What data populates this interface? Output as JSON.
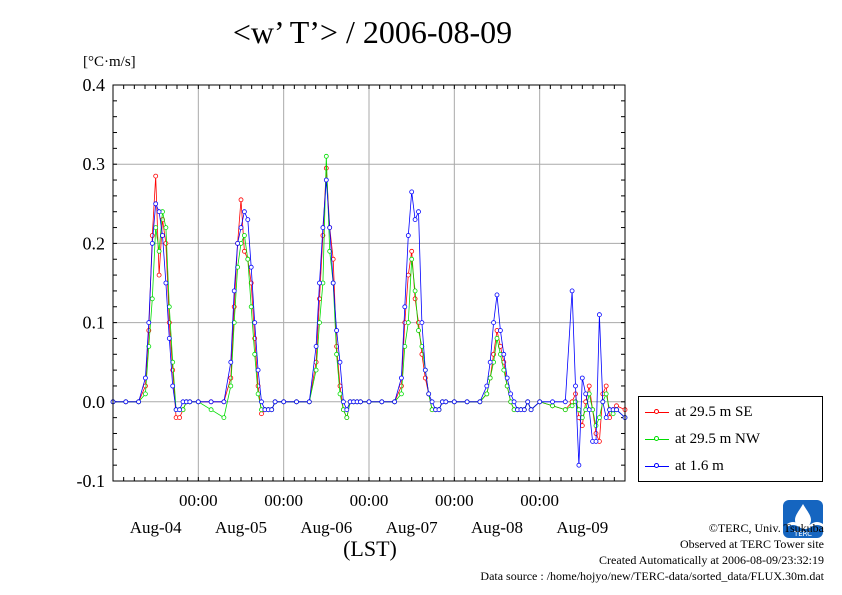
{
  "title": "<w’ T’> / 2006-08-09",
  "unit_label": "[°C·m/s]",
  "xlabel": "(LST)",
  "footer": {
    "credit": "©TERC, Univ. Tsukuba",
    "site": "Observed at TERC Tower site",
    "created": "Created Automatically at 2006-08-09/23:32:19",
    "source": "Data source : /home/hojyo/new/TERC-data/sorted_data/FLUX.30m.dat",
    "logo_text": "TERC"
  },
  "chart_data": {
    "type": "line",
    "title": "<w’ T’> / 2006-08-09",
    "ylabel": "[°C·m/s]",
    "xlabel": "(LST)",
    "ylim": [
      -0.1,
      0.4
    ],
    "yticks": [
      "0.4",
      "0.3",
      "0.2",
      "0.1",
      "0.0",
      "-0.1"
    ],
    "ytick_values": [
      0.4,
      0.3,
      0.2,
      0.1,
      0.0,
      -0.1
    ],
    "xlim_days": [
      0,
      6
    ],
    "time_tick_labels": [
      "00:00",
      "00:00",
      "00:00",
      "00:00",
      "00:00"
    ],
    "date_labels": [
      "Aug-04",
      "Aug-05",
      "Aug-06",
      "Aug-07",
      "Aug-08",
      "Aug-09"
    ],
    "grid": true,
    "legend_position": "right",
    "series": [
      {
        "name": "at 29.5 m SE",
        "color": "#ff0000",
        "t_day_offset": [
          0.0,
          0.15,
          0.3,
          0.38,
          0.42,
          0.46,
          0.5,
          0.54,
          0.58,
          0.62,
          0.66,
          0.7,
          0.74,
          0.78,
          0.82,
          0.86,
          0.9,
          1.0,
          1.15,
          1.3,
          1.38,
          1.42,
          1.46,
          1.5,
          1.54,
          1.58,
          1.62,
          1.66,
          1.7,
          1.74,
          1.78,
          1.82,
          1.86,
          1.9,
          2.0,
          2.15,
          2.3,
          2.38,
          2.42,
          2.46,
          2.5,
          2.54,
          2.58,
          2.62,
          2.66,
          2.7,
          2.74,
          2.78,
          2.82,
          2.86,
          2.9,
          3.0,
          3.15,
          3.3,
          3.38,
          3.42,
          3.46,
          3.5,
          3.54,
          3.58,
          3.62,
          3.66,
          3.7,
          3.74,
          3.78,
          3.82,
          3.86,
          3.9,
          4.0,
          4.15,
          4.3,
          4.38,
          4.42,
          4.46,
          4.5,
          4.54,
          4.58,
          4.62,
          4.66,
          4.7,
          4.74,
          4.78,
          4.82,
          4.86,
          4.9,
          5.0,
          5.15,
          5.3,
          5.38,
          5.42,
          5.46,
          5.5,
          5.54,
          5.58,
          5.62,
          5.66,
          5.7,
          5.74,
          5.78,
          5.82,
          5.86,
          5.9,
          6.0
        ],
        "values": [
          0.0,
          0.0,
          0.0,
          0.02,
          0.09,
          0.21,
          0.285,
          0.16,
          0.23,
          0.2,
          0.1,
          0.04,
          -0.02,
          -0.02,
          -0.01,
          0.0,
          0.0,
          0.0,
          0.0,
          0.0,
          0.03,
          0.12,
          0.2,
          0.255,
          0.19,
          0.18,
          0.15,
          0.08,
          0.02,
          -0.015,
          -0.01,
          -0.01,
          -0.01,
          0.0,
          0.0,
          0.0,
          0.0,
          0.05,
          0.13,
          0.21,
          0.295,
          0.22,
          0.18,
          0.07,
          0.02,
          -0.01,
          -0.02,
          0.0,
          0.0,
          0.0,
          0.0,
          0.0,
          0.0,
          0.0,
          0.02,
          0.1,
          0.16,
          0.19,
          0.13,
          0.1,
          0.06,
          0.03,
          0.01,
          -0.01,
          -0.01,
          -0.01,
          0.0,
          0.0,
          0.0,
          0.0,
          0.0,
          0.01,
          0.03,
          0.06,
          0.09,
          0.07,
          0.05,
          0.02,
          0.0,
          -0.01,
          -0.01,
          -0.01,
          -0.01,
          0.0,
          -0.01,
          0.0,
          -0.005,
          -0.01,
          0.0,
          0.01,
          -0.02,
          -0.03,
          0.0,
          0.02,
          -0.01,
          -0.04,
          -0.05,
          0.01,
          0.02,
          -0.02,
          -0.01,
          -0.005,
          -0.01
        ]
      },
      {
        "name": "at 29.5 m NW",
        "color": "#00dd00",
        "t_day_offset": [
          0.0,
          0.15,
          0.3,
          0.38,
          0.42,
          0.46,
          0.5,
          0.54,
          0.58,
          0.62,
          0.66,
          0.7,
          0.74,
          0.78,
          0.82,
          0.86,
          0.9,
          1.0,
          1.15,
          1.3,
          1.38,
          1.42,
          1.46,
          1.5,
          1.54,
          1.58,
          1.62,
          1.66,
          1.7,
          1.74,
          1.78,
          1.82,
          1.86,
          1.9,
          2.0,
          2.15,
          2.3,
          2.38,
          2.42,
          2.46,
          2.5,
          2.54,
          2.58,
          2.62,
          2.66,
          2.7,
          2.74,
          2.78,
          2.82,
          2.86,
          2.9,
          3.0,
          3.15,
          3.3,
          3.38,
          3.42,
          3.46,
          3.5,
          3.54,
          3.58,
          3.62,
          3.66,
          3.7,
          3.74,
          3.78,
          3.82,
          3.86,
          3.9,
          4.0,
          4.15,
          4.3,
          4.38,
          4.42,
          4.46,
          4.5,
          4.54,
          4.58,
          4.62,
          4.66,
          4.7,
          4.74,
          4.78,
          4.82,
          4.86,
          4.9,
          5.0,
          5.15,
          5.3,
          5.38,
          5.42,
          5.46,
          5.5,
          5.54,
          5.58,
          5.62,
          5.66,
          5.7,
          5.74,
          5.78,
          5.82,
          5.86,
          5.9,
          6.0
        ],
        "values": [
          0.0,
          0.0,
          0.0,
          0.01,
          0.07,
          0.13,
          0.22,
          0.19,
          0.24,
          0.22,
          0.12,
          0.05,
          -0.01,
          -0.01,
          -0.01,
          0.0,
          0.0,
          0.0,
          -0.01,
          -0.02,
          0.02,
          0.1,
          0.17,
          0.2,
          0.21,
          0.18,
          0.12,
          0.06,
          0.01,
          -0.01,
          -0.01,
          -0.01,
          -0.01,
          0.0,
          0.0,
          0.0,
          0.0,
          0.04,
          0.1,
          0.15,
          0.31,
          0.19,
          0.15,
          0.06,
          0.01,
          -0.01,
          -0.02,
          0.0,
          0.0,
          0.0,
          0.0,
          0.0,
          0.0,
          0.0,
          0.01,
          0.07,
          0.1,
          0.18,
          0.14,
          0.09,
          0.07,
          0.04,
          0.01,
          -0.01,
          -0.01,
          -0.01,
          0.0,
          0.0,
          0.0,
          0.0,
          0.0,
          0.01,
          0.03,
          0.05,
          0.08,
          0.06,
          0.04,
          0.02,
          0.0,
          -0.01,
          -0.01,
          -0.01,
          -0.01,
          0.0,
          -0.01,
          0.0,
          -0.005,
          -0.01,
          -0.005,
          0.0,
          -0.01,
          -0.02,
          -0.01,
          0.01,
          -0.01,
          -0.03,
          -0.02,
          0.0,
          0.01,
          -0.01,
          -0.015,
          -0.01,
          -0.02
        ]
      },
      {
        "name": "at 1.6 m",
        "color": "#0000ff",
        "t_day_offset": [
          0.0,
          0.15,
          0.3,
          0.38,
          0.42,
          0.46,
          0.5,
          0.54,
          0.58,
          0.62,
          0.66,
          0.7,
          0.74,
          0.78,
          0.82,
          0.86,
          0.9,
          1.0,
          1.15,
          1.3,
          1.38,
          1.42,
          1.46,
          1.5,
          1.54,
          1.58,
          1.62,
          1.66,
          1.7,
          1.74,
          1.78,
          1.82,
          1.86,
          1.9,
          2.0,
          2.15,
          2.3,
          2.38,
          2.42,
          2.46,
          2.5,
          2.54,
          2.58,
          2.62,
          2.66,
          2.7,
          2.74,
          2.78,
          2.82,
          2.86,
          2.9,
          3.0,
          3.15,
          3.3,
          3.38,
          3.42,
          3.46,
          3.5,
          3.54,
          3.58,
          3.62,
          3.66,
          3.7,
          3.74,
          3.78,
          3.82,
          3.86,
          3.9,
          4.0,
          4.15,
          4.3,
          4.38,
          4.42,
          4.46,
          4.5,
          4.54,
          4.58,
          4.62,
          4.66,
          4.7,
          4.74,
          4.78,
          4.82,
          4.86,
          4.9,
          5.0,
          5.15,
          5.3,
          5.38,
          5.42,
          5.46,
          5.5,
          5.54,
          5.58,
          5.62,
          5.66,
          5.7,
          5.74,
          5.78,
          5.82,
          5.86,
          5.9,
          6.0
        ],
        "values": [
          0.0,
          0.0,
          0.0,
          0.03,
          0.1,
          0.2,
          0.25,
          0.24,
          0.21,
          0.15,
          0.08,
          0.02,
          -0.01,
          -0.01,
          0.0,
          0.0,
          0.0,
          0.0,
          0.0,
          0.0,
          0.05,
          0.14,
          0.2,
          0.22,
          0.24,
          0.23,
          0.17,
          0.1,
          0.04,
          0.0,
          -0.01,
          -0.01,
          -0.01,
          0.0,
          0.0,
          0.0,
          0.0,
          0.07,
          0.15,
          0.22,
          0.28,
          0.22,
          0.15,
          0.09,
          0.05,
          0.0,
          -0.01,
          0.0,
          0.0,
          0.0,
          0.0,
          0.0,
          0.0,
          0.0,
          0.03,
          0.12,
          0.21,
          0.265,
          0.23,
          0.24,
          0.1,
          0.04,
          0.01,
          0.0,
          -0.01,
          -0.01,
          0.0,
          0.0,
          0.0,
          0.0,
          0.0,
          0.02,
          0.05,
          0.1,
          0.135,
          0.09,
          0.06,
          0.03,
          0.01,
          0.0,
          -0.01,
          -0.01,
          -0.01,
          0.0,
          -0.01,
          0.0,
          0.0,
          0.0,
          0.14,
          0.02,
          -0.08,
          0.03,
          0.01,
          -0.01,
          -0.05,
          -0.05,
          0.11,
          0.0,
          -0.02,
          -0.01,
          -0.01,
          -0.01,
          -0.02
        ]
      }
    ]
  }
}
